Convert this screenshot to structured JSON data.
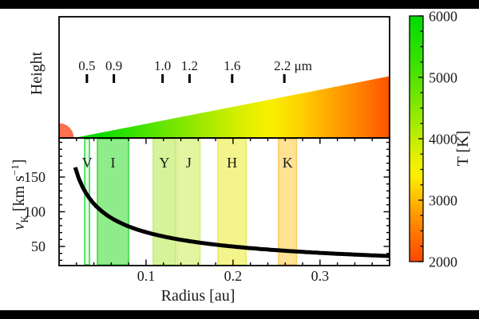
{
  "layout_colors": {
    "letterbox": "#000000",
    "background": "#ffffff",
    "frame": "#000000"
  },
  "chart_data": {
    "type": "line",
    "title": "",
    "panels": [
      {
        "id": "disk-height-schematic",
        "type": "area",
        "ylabel": "Height",
        "x_range_au": [
          0,
          0.38
        ],
        "star": {
          "color": "#ff7050",
          "radius_au": 0.017
        },
        "disk_wedge": {
          "inner_edge_au": 0.017,
          "outer_edge_au": 0.38,
          "height_fraction_at_outer_edge": 0.51,
          "temperature_gradient_stops": [
            {
              "offset": 0.0,
              "color": "#00d400"
            },
            {
              "offset": 0.1,
              "color": "#12dc00"
            },
            {
              "offset": 0.25,
              "color": "#55e400"
            },
            {
              "offset": 0.4,
              "color": "#9ce900"
            },
            {
              "offset": 0.52,
              "color": "#d6ee00"
            },
            {
              "offset": 0.62,
              "color": "#f8f000"
            },
            {
              "offset": 0.72,
              "color": "#ffd000"
            },
            {
              "offset": 0.82,
              "color": "#ffa400"
            },
            {
              "offset": 0.92,
              "color": "#ff7a00"
            },
            {
              "offset": 1.0,
              "color": "#ff5200"
            }
          ]
        },
        "wavelength_markers": [
          {
            "label": "0.5",
            "au": 0.032
          },
          {
            "label": "0.9",
            "au": 0.063
          },
          {
            "label": "1.0",
            "au": 0.119
          },
          {
            "label": "1.2",
            "au": 0.15
          },
          {
            "label": "1.6",
            "au": 0.199
          },
          {
            "label": "2.2 μm",
            "au": 0.259,
            "has_unit": true
          }
        ]
      },
      {
        "id": "keplerian-velocity",
        "type": "line",
        "xlabel": "Radius [au]",
        "ylabel_parts": {
          "variable": "v",
          "subscript": "K",
          "unit_pre": " [km s",
          "exponent": "−1",
          "unit_post": "]"
        },
        "xlim_au": [
          0,
          0.38
        ],
        "ylim_km_s": [
          22,
          206
        ],
        "x_major_ticks": [
          {
            "value": 0.1,
            "label": "0.1"
          },
          {
            "value": 0.2,
            "label": "0.2"
          },
          {
            "value": 0.3,
            "label": "0.3"
          }
        ],
        "x_minor_step_au": 0.02,
        "y_major_ticks": [
          {
            "value": 50,
            "label": "50"
          },
          {
            "value": 100,
            "label": "100"
          },
          {
            "value": 150,
            "label": "150"
          }
        ],
        "y_minor_step": 10,
        "curve": {
          "color": "#000000",
          "v_equals": "22.3 / sqrt(r_au)",
          "coeff_km_s": 22.3,
          "r_start_au": 0.0185,
          "r_end_au": 0.38,
          "sample_points": [
            {
              "r_au": 0.0185,
              "v_km_s": 164.0
            },
            {
              "r_au": 0.03,
              "v_km_s": 128.8
            },
            {
              "r_au": 0.05,
              "v_km_s": 99.7
            },
            {
              "r_au": 0.08,
              "v_km_s": 78.8
            },
            {
              "r_au": 0.1,
              "v_km_s": 70.5
            },
            {
              "r_au": 0.15,
              "v_km_s": 57.6
            },
            {
              "r_au": 0.2,
              "v_km_s": 49.9
            },
            {
              "r_au": 0.25,
              "v_km_s": 44.6
            },
            {
              "r_au": 0.3,
              "v_km_s": 40.7
            },
            {
              "r_au": 0.38,
              "v_km_s": 36.2
            }
          ]
        },
        "photometric_bands": [
          {
            "label": "V",
            "from_au": 0.0295,
            "to_au": 0.035,
            "fill": "#dff8df",
            "edge": "#30dc50"
          },
          {
            "label": "I",
            "from_au": 0.0441,
            "to_au": 0.0799,
            "fill": "#8fec8a",
            "edge": "#42da42"
          },
          {
            "label": "Y",
            "from_au": 0.1083,
            "to_au": 0.134,
            "fill": "#d6f399",
            "edge": "#c2ec6b"
          },
          {
            "label": "J",
            "from_au": 0.136,
            "to_au": 0.162,
            "fill": "#e3f5a0",
            "edge": "#d4ef78"
          },
          {
            "label": "H",
            "from_au": 0.1827,
            "to_au": 0.215,
            "fill": "#f4f48c",
            "edge": "#ebeb5e"
          },
          {
            "label": "K",
            "from_au": 0.2524,
            "to_au": 0.273,
            "fill": "#ffe293",
            "edge": "#ffca60"
          }
        ]
      }
    ],
    "colorbar": {
      "label": "T [K]",
      "min_K": 2000,
      "max_K": 6000,
      "major_ticks": [
        {
          "value": 6000,
          "label": "6000"
        },
        {
          "value": 5000,
          "label": "5000"
        },
        {
          "value": 4000,
          "label": "4000"
        },
        {
          "value": 3000,
          "label": "3000"
        },
        {
          "value": 2000,
          "label": "2000"
        }
      ],
      "minor_step_K": 250,
      "gradient_stops": [
        {
          "T": 6000,
          "color": "#00dc00"
        },
        {
          "T": 5200,
          "color": "#3ce200"
        },
        {
          "T": 4600,
          "color": "#7ce700"
        },
        {
          "T": 4100,
          "color": "#b4ec00"
        },
        {
          "T": 3700,
          "color": "#e4ef00"
        },
        {
          "T": 3400,
          "color": "#fcf000"
        },
        {
          "T": 3100,
          "color": "#ffc800"
        },
        {
          "T": 2800,
          "color": "#ff9e00"
        },
        {
          "T": 2400,
          "color": "#ff7000"
        },
        {
          "T": 2000,
          "color": "#ff4600"
        }
      ]
    }
  }
}
